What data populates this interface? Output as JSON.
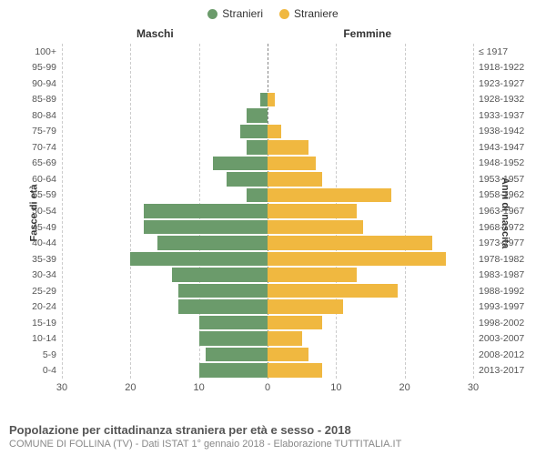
{
  "legend": {
    "male": "Stranieri",
    "female": "Straniere"
  },
  "colors": {
    "male": "#6b9b6b",
    "female": "#f0b840",
    "grid": "#cccccc",
    "center": "#888888",
    "bg": "#ffffff"
  },
  "column_titles": {
    "left": "Maschi",
    "right": "Femmine"
  },
  "axis_titles": {
    "left": "Fasce di età",
    "right": "Anni di nascita"
  },
  "x_axis": {
    "min": 0,
    "max": 30,
    "ticks": [
      30,
      20,
      10,
      0,
      10,
      20,
      30
    ]
  },
  "footer": {
    "title": "Popolazione per cittadinanza straniera per età e sesso - 2018",
    "sub": "COMUNE DI FOLLINA (TV) - Dati ISTAT 1° gennaio 2018 - Elaborazione TUTTITALIA.IT"
  },
  "rows": [
    {
      "age": "100+",
      "birth": "≤ 1917",
      "m": 0,
      "f": 0
    },
    {
      "age": "95-99",
      "birth": "1918-1922",
      "m": 0,
      "f": 0
    },
    {
      "age": "90-94",
      "birth": "1923-1927",
      "m": 0,
      "f": 0
    },
    {
      "age": "85-89",
      "birth": "1928-1932",
      "m": 1,
      "f": 1
    },
    {
      "age": "80-84",
      "birth": "1933-1937",
      "m": 3,
      "f": 0
    },
    {
      "age": "75-79",
      "birth": "1938-1942",
      "m": 4,
      "f": 2
    },
    {
      "age": "70-74",
      "birth": "1943-1947",
      "m": 3,
      "f": 6
    },
    {
      "age": "65-69",
      "birth": "1948-1952",
      "m": 8,
      "f": 7
    },
    {
      "age": "60-64",
      "birth": "1953-1957",
      "m": 6,
      "f": 8
    },
    {
      "age": "55-59",
      "birth": "1958-1962",
      "m": 3,
      "f": 18
    },
    {
      "age": "50-54",
      "birth": "1963-1967",
      "m": 18,
      "f": 13
    },
    {
      "age": "45-49",
      "birth": "1968-1972",
      "m": 18,
      "f": 14
    },
    {
      "age": "40-44",
      "birth": "1973-1977",
      "m": 16,
      "f": 24
    },
    {
      "age": "35-39",
      "birth": "1978-1982",
      "m": 20,
      "f": 26
    },
    {
      "age": "30-34",
      "birth": "1983-1987",
      "m": 14,
      "f": 13
    },
    {
      "age": "25-29",
      "birth": "1988-1992",
      "m": 13,
      "f": 19
    },
    {
      "age": "20-24",
      "birth": "1993-1997",
      "m": 13,
      "f": 11
    },
    {
      "age": "15-19",
      "birth": "1998-2002",
      "m": 10,
      "f": 8
    },
    {
      "age": "10-14",
      "birth": "2003-2007",
      "m": 10,
      "f": 5
    },
    {
      "age": "5-9",
      "birth": "2008-2012",
      "m": 9,
      "f": 6
    },
    {
      "age": "0-4",
      "birth": "2013-2017",
      "m": 10,
      "f": 8
    }
  ]
}
